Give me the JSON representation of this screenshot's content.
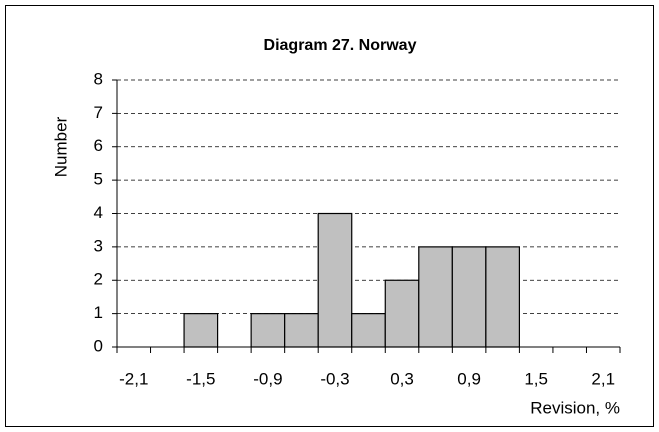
{
  "chart_data": {
    "type": "bar",
    "title": "Diagram 27.  Norway",
    "x_label": "Revision, %",
    "y_label": "Number",
    "categories": [
      "-2,1",
      null,
      "-1,5",
      null,
      "-0,9",
      null,
      "-0,3",
      null,
      "0,3",
      null,
      "0,9",
      null,
      "1,5",
      null,
      "2,1"
    ],
    "values": [
      0,
      0,
      1,
      0,
      1,
      1,
      4,
      1,
      2,
      3,
      3,
      3,
      0,
      0,
      0
    ],
    "color": "#c0c0c0",
    "ylim": [
      0,
      8
    ],
    "yticks": [
      0,
      1,
      2,
      3,
      4,
      5,
      6,
      7,
      8
    ],
    "grid": true
  }
}
